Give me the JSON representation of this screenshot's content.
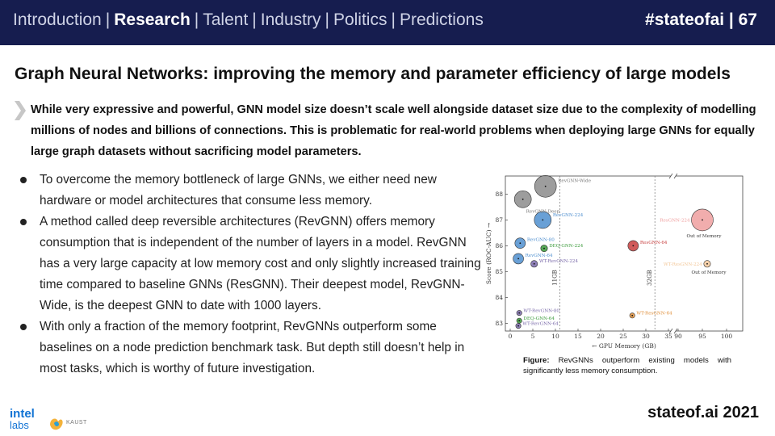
{
  "header": {
    "nav": [
      {
        "label": "Introduction",
        "active": false
      },
      {
        "label": "Research",
        "active": true
      },
      {
        "label": "Talent",
        "active": false
      },
      {
        "label": "Industry",
        "active": false
      },
      {
        "label": "Politics",
        "active": false
      },
      {
        "label": "Predictions",
        "active": false
      }
    ],
    "tag": "#stateofai | 67"
  },
  "title": "Graph Neural Networks: improving the memory and parameter efficiency of large models",
  "callout": "While very expressive and powerful, GNN model size doesn’t scale well alongside dataset size due to the complexity of modelling millions of nodes and billions of connections. This is problematic for real-world problems when deploying large GNNs for equally large graph datasets without sacrificing model parameters.",
  "bullets": [
    "To overcome the memory bottleneck of large GNNs, we either need new hardware or model architectures that consume less memory.",
    "A method called deep reversible architectures (RevGNN) offers memory consumption that is independent of the number of layers in a model. RevGNN has a very large capacity at low memory cost and only slightly increased training time compared to baseline GNNs (ResGNN). Their deepest model, RevGNN-Wide, is the deepest GNN to date with 1000 layers.",
    "With only a fraction of the memory footprint, RevGNNs outperform some baselines on a node prediction benchmark task. But depth still doesn’t help in most tasks, which is worthy of future investigation."
  ],
  "chart_data": {
    "type": "scatter",
    "xlabel": "← GPU Memory (GB)",
    "ylabel": "Score (ROC-AUC) →",
    "x_ticks": [
      "0",
      "5",
      "10",
      "15",
      "20",
      "25",
      "30",
      "35",
      "90",
      "95",
      "100"
    ],
    "y_ticks": [
      "83",
      "84",
      "85",
      "86",
      "87",
      "88"
    ],
    "xlim": [
      0,
      100
    ],
    "ylim": [
      82.7,
      88.7
    ],
    "axis_break": "between 35 and 90",
    "reference_lines": [
      {
        "x": 11,
        "label": "11GB"
      },
      {
        "x": 32,
        "label": "32GB"
      }
    ],
    "points": [
      {
        "name": "RevGNN-Wide",
        "x": 7.8,
        "y": 88.3,
        "size": "xl",
        "color": "#8c8c8c"
      },
      {
        "name": "RevGNN-Deep",
        "x": 2.8,
        "y": 87.8,
        "size": "l",
        "color": "#8c8c8c"
      },
      {
        "name": "RevGNN-224",
        "x": 7.2,
        "y": 87.0,
        "size": "l",
        "color": "#4f8fcf"
      },
      {
        "name": "RevGNN-80",
        "x": 2.2,
        "y": 86.1,
        "size": "m",
        "color": "#4f8fcf"
      },
      {
        "name": "RevGNN-64",
        "x": 1.8,
        "y": 85.5,
        "size": "m",
        "color": "#4f8fcf"
      },
      {
        "name": "DEQ-GNN-224",
        "x": 7.5,
        "y": 85.9,
        "size": "s",
        "color": "#3a9a3a"
      },
      {
        "name": "WT-RevGNN-224",
        "x": 5.3,
        "y": 85.3,
        "size": "s",
        "color": "#7a6aaa"
      },
      {
        "name": "ResGNN-64",
        "x": 27.2,
        "y": 86.0,
        "size": "m",
        "color": "#c84040"
      },
      {
        "name": "ResGNN-224",
        "x": 95.0,
        "y": 87.0,
        "size": "xl",
        "color": "#ef9f9f",
        "note": "Out of Memory"
      },
      {
        "name": "WT-ResGNN-224",
        "x": 96.0,
        "y": 85.3,
        "size": "s",
        "color": "#f3c89a",
        "note": "Out of Memory"
      },
      {
        "name": "WT-RevGNN-80",
        "x": 2.0,
        "y": 83.4,
        "size": "xs",
        "color": "#7a6aaa"
      },
      {
        "name": "DEQ-GNN-64",
        "x": 2.0,
        "y": 83.1,
        "size": "xs",
        "color": "#3a9a3a"
      },
      {
        "name": "WT-RevGNN-64",
        "x": 1.8,
        "y": 82.9,
        "size": "xs",
        "color": "#7a6aaa"
      },
      {
        "name": "WT-ResGNN-64",
        "x": 27.0,
        "y": 83.3,
        "size": "xs",
        "color": "#e08f3a"
      }
    ]
  },
  "caption": {
    "label": "Figure:",
    "text": "RevGNNs outperform existing models with significantly less memory consumption."
  },
  "footer": {
    "brand": "stateof.ai 2021",
    "intel_logo_top": "intel",
    "intel_logo_bottom": "labs",
    "kaust_logo": "KAUST"
  },
  "colors": {
    "header_bg": "#161d4f",
    "intel_blue": "#1173d4"
  }
}
